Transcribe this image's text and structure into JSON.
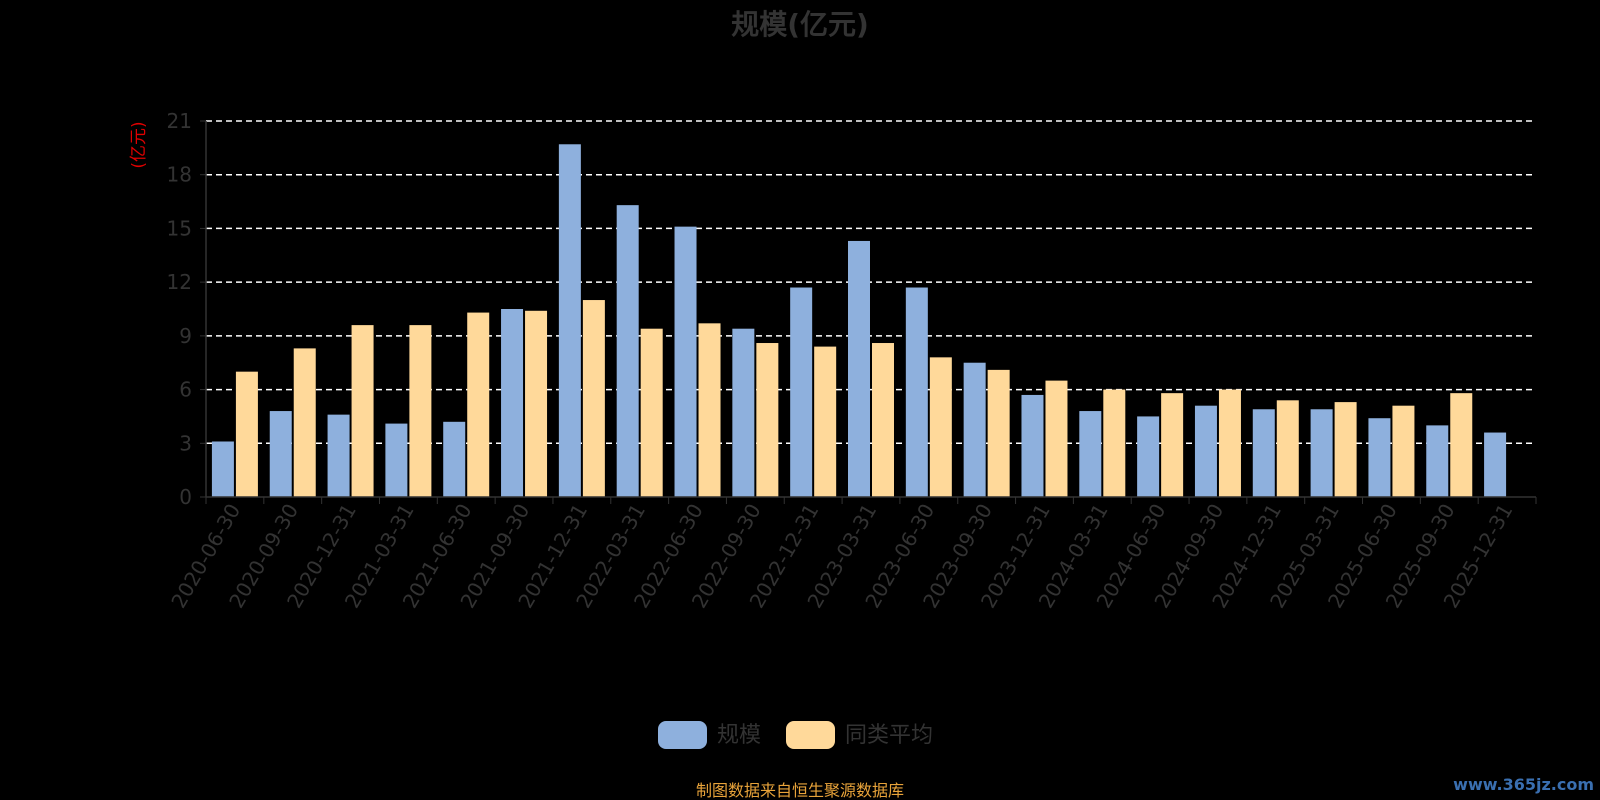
{
  "chart_data": {
    "type": "bar",
    "title": "规模(亿元)",
    "ylabel": "(亿元)",
    "ylim": [
      0,
      21
    ],
    "yticks": [
      0,
      3,
      6,
      9,
      12,
      15,
      18,
      21
    ],
    "grid": true,
    "legend_position": "bottom",
    "categories": [
      "2020-06-30",
      "2020-09-30",
      "2020-12-31",
      "2021-03-31",
      "2021-06-30",
      "2021-09-30",
      "2021-12-31",
      "2022-03-31",
      "2022-06-30",
      "2022-09-30",
      "2022-12-31",
      "2023-03-31",
      "2023-06-30",
      "2023-09-30",
      "2023-12-31",
      "2024-03-31",
      "2024-06-30",
      "2024-09-30",
      "2024-12-31",
      "2025-03-31",
      "2025-06-30",
      "2025-09-30",
      "2025-12-31"
    ],
    "series": [
      {
        "name": "规模",
        "color": "#8eb0dd",
        "values": [
          3.1,
          4.8,
          4.6,
          4.1,
          4.2,
          10.5,
          19.7,
          16.3,
          15.1,
          9.4,
          11.7,
          14.3,
          11.7,
          7.5,
          5.7,
          4.8,
          4.5,
          5.1,
          4.9,
          4.9,
          4.4,
          4.0,
          3.6
        ]
      },
      {
        "name": "同类平均",
        "color": "#ffd99a",
        "values": [
          7.0,
          8.3,
          9.6,
          9.6,
          10.3,
          10.4,
          11.0,
          9.4,
          9.7,
          8.6,
          8.4,
          8.6,
          7.8,
          7.1,
          6.5,
          6.0,
          5.8,
          6.0,
          5.4,
          5.3,
          5.1,
          5.8,
          null
        ]
      }
    ]
  },
  "source_text": "制图数据来自恒生聚源数据库",
  "watermark_text": "www.365jz.com"
}
